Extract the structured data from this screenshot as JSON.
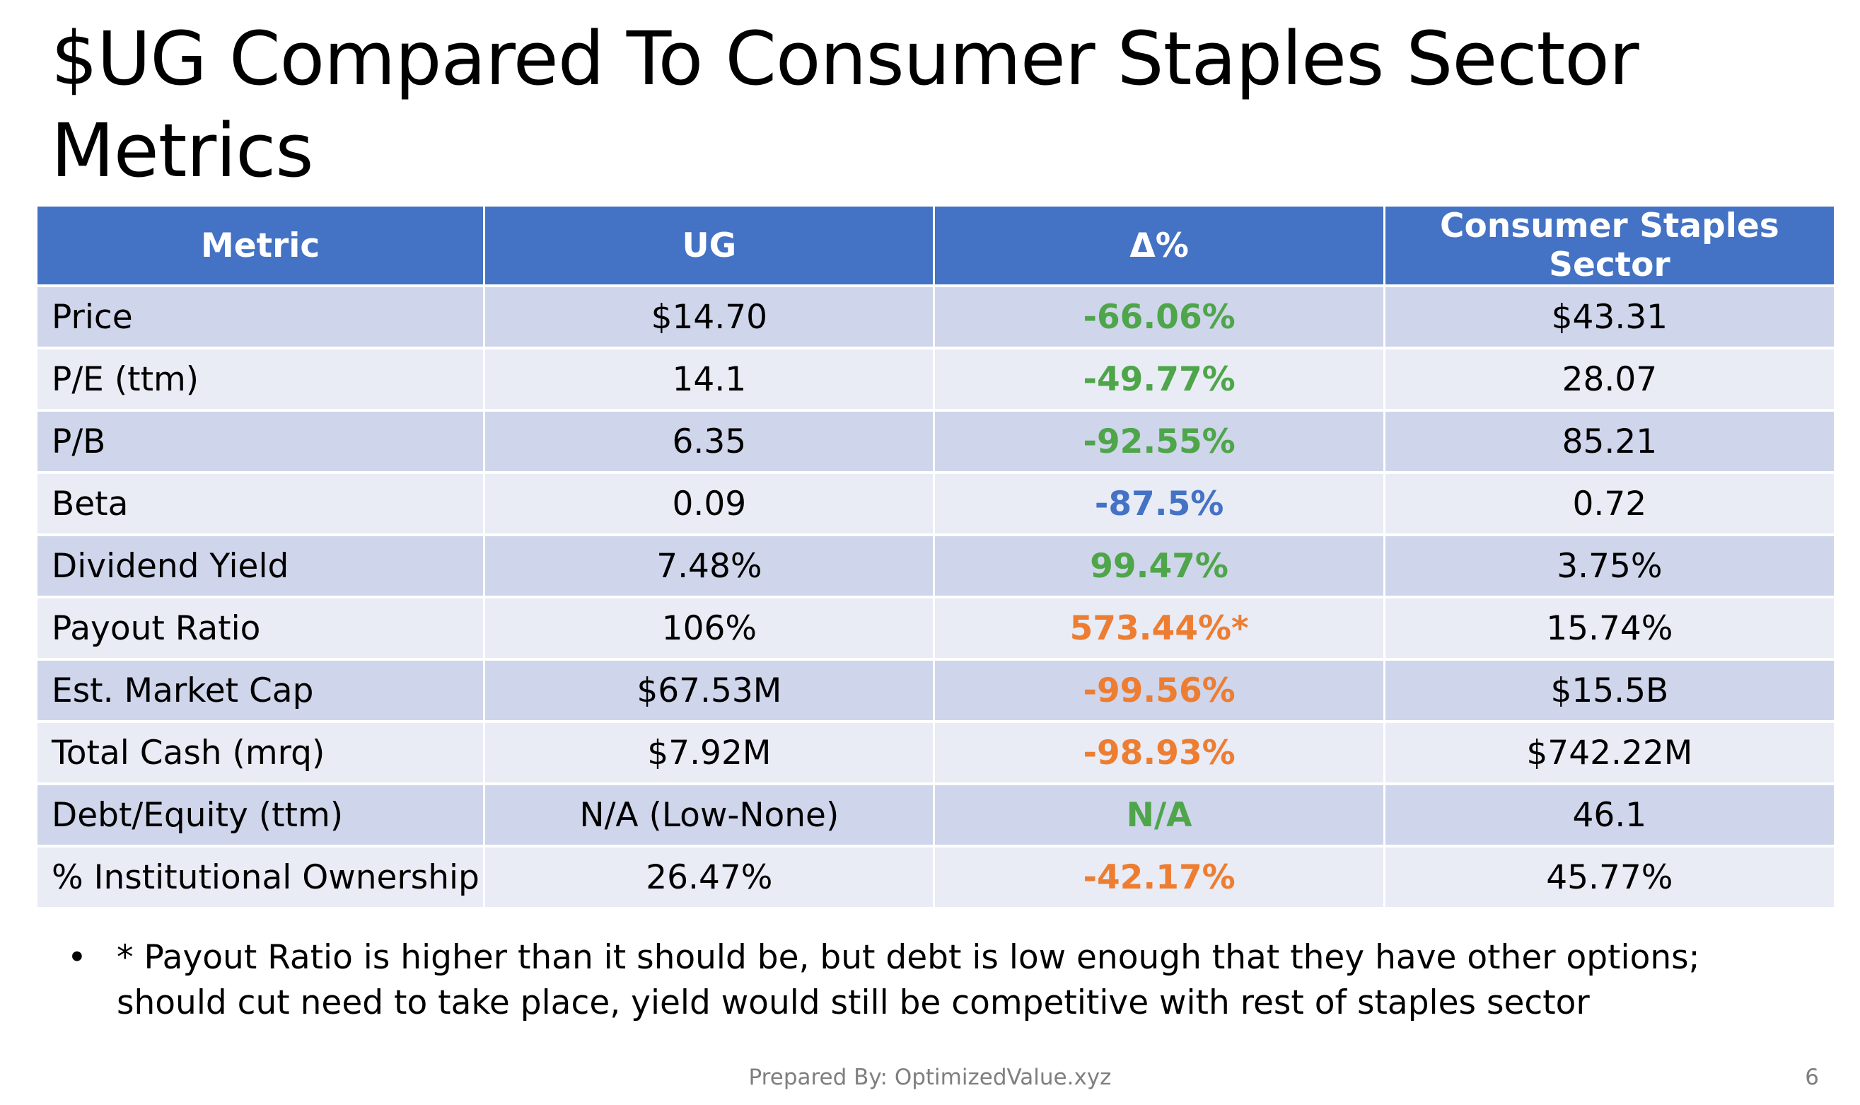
{
  "title": "$UG Compared To Consumer Staples Sector Metrics",
  "table": {
    "headers": [
      "Metric",
      "UG",
      "Δ%",
      "Consumer Staples Sector"
    ],
    "rows": [
      {
        "metric": "Price",
        "ug": "$14.70",
        "delta": "-66.06%",
        "delta_color": "#4ea54a",
        "sector": "$43.31"
      },
      {
        "metric": "P/E (ttm)",
        "ug": "14.1",
        "delta": "-49.77%",
        "delta_color": "#4ea54a",
        "sector": "28.07"
      },
      {
        "metric": "P/B",
        "ug": "6.35",
        "delta": "-92.55%",
        "delta_color": "#4ea54a",
        "sector": "85.21"
      },
      {
        "metric": "Beta",
        "ug": "0.09",
        "delta": "-87.5%",
        "delta_color": "#4472c4",
        "sector": "0.72"
      },
      {
        "metric": "Dividend Yield",
        "ug": "7.48%",
        "delta": "99.47%",
        "delta_color": "#4ea54a",
        "sector": "3.75%"
      },
      {
        "metric": "Payout Ratio",
        "ug": "106%",
        "delta": "573.44%*",
        "delta_color": "#ed7d31",
        "sector": "15.74%"
      },
      {
        "metric": "Est. Market Cap",
        "ug": "$67.53M",
        "delta": "-99.56%",
        "delta_color": "#ed7d31",
        "sector": "$15.5B"
      },
      {
        "metric": "Total Cash (mrq)",
        "ug": "$7.92M",
        "delta": "-98.93%",
        "delta_color": "#ed7d31",
        "sector": "$742.22M"
      },
      {
        "metric": "Debt/Equity (ttm)",
        "ug": "N/A (Low-None)",
        "delta": "N/A",
        "delta_color": "#4ea54a",
        "sector": "46.1"
      },
      {
        "metric": "% Institutional Ownership",
        "ug": "26.47%",
        "delta": "-42.17%",
        "delta_color": "#ed7d31",
        "sector": "45.77%"
      }
    ]
  },
  "colors": {
    "header_bg": "#4472c4",
    "row_dark": "#cfd5ea",
    "row_light": "#e9ebf5",
    "favorable": "#4ea54a",
    "neutral": "#4472c4",
    "unfavorable": "#ed7d31"
  },
  "note": {
    "bullet": "•",
    "text": "* Payout Ratio is higher than it should be, but debt is low enough that they have other options; should cut need to take place, yield would still be competitive with rest of staples sector"
  },
  "footer": "Prepared By: OptimizedValue.xyz",
  "page_number": "6"
}
